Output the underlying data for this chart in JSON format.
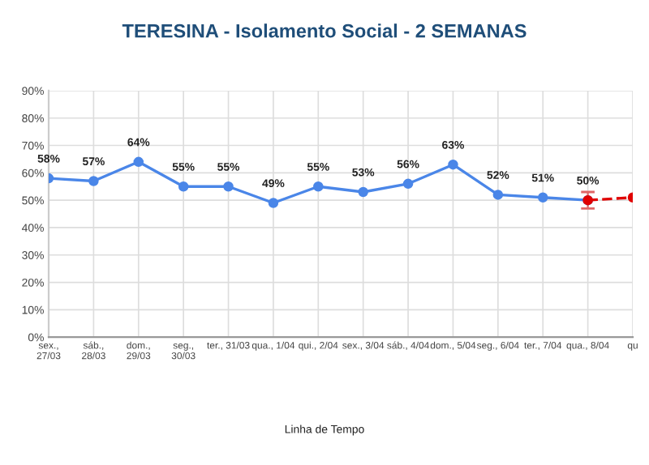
{
  "chart_data": {
    "type": "line",
    "title": "TERESINA - Isolamento Social - 2 SEMANAS",
    "annotations": [
      "Linha de Tempo"
    ],
    "categories": [
      "sex.,\n27/03",
      "sáb.,\n28/03",
      "dom.,\n29/03",
      "seg.,\n30/03",
      "ter., 31/03",
      "qua., 1/04",
      "qui., 2/04",
      "sex., 3/04",
      "sáb., 4/04",
      "dom., 5/04",
      "seg., 6/04",
      "ter., 7/04",
      "qua., 8/04",
      "qu"
    ],
    "series": [
      {
        "color": "#4a86e8",
        "values": [
          58,
          57,
          64,
          55,
          55,
          49,
          55,
          53,
          56,
          63,
          52,
          51,
          50,
          null
        ],
        "value_labels": [
          "58%",
          "57%",
          "64%",
          "55%",
          "55%",
          "49%",
          "55%",
          "53%",
          "56%",
          "63%",
          "52%",
          "51%",
          "50%",
          null
        ],
        "errors": [
          null,
          null,
          null,
          null,
          null,
          null,
          null,
          null,
          null,
          null,
          null,
          null,
          3,
          null
        ],
        "line_style": "solid"
      },
      {
        "color": "#e00000",
        "values": [
          null,
          null,
          null,
          null,
          null,
          null,
          null,
          null,
          null,
          null,
          null,
          null,
          50,
          51
        ],
        "line_style": "dashed"
      }
    ],
    "ylim": [
      0,
      90
    ],
    "yticks": [
      {
        "value": 0,
        "label": "0%"
      },
      {
        "value": 10,
        "label": "10%"
      },
      {
        "value": 20,
        "label": "20%"
      },
      {
        "value": 30,
        "label": "30%"
      },
      {
        "value": 40,
        "label": "40%"
      },
      {
        "value": 50,
        "label": "50%"
      },
      {
        "value": 60,
        "label": "60%"
      },
      {
        "value": 70,
        "label": "70%"
      },
      {
        "value": 80,
        "label": "80%"
      },
      {
        "value": 90,
        "label": "90%"
      }
    ],
    "grid": true,
    "marker": "circle"
  }
}
